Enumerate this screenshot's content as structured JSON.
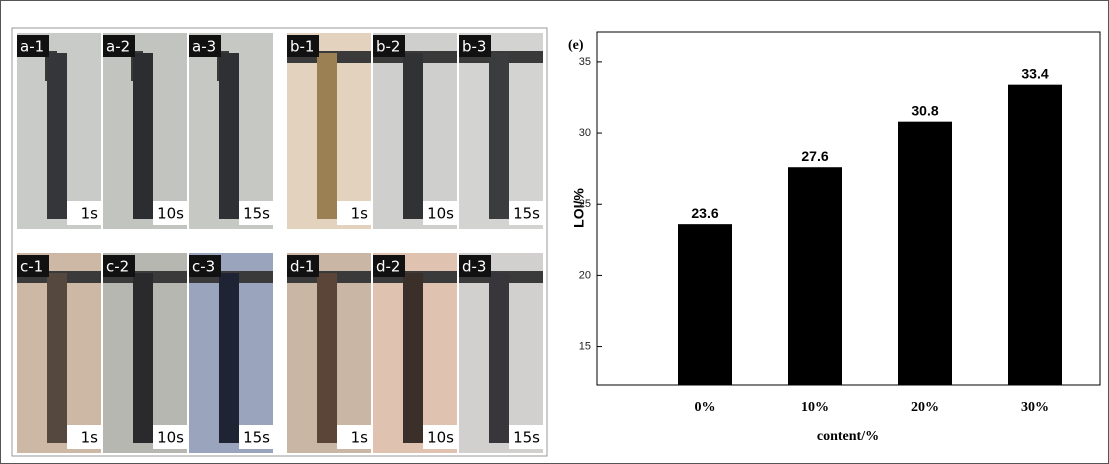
{
  "photos": {
    "groups": [
      {
        "panels": [
          {
            "label": "a-1",
            "time": "1s"
          },
          {
            "label": "a-2",
            "time": "10s"
          },
          {
            "label": "a-3",
            "time": "15s"
          }
        ]
      },
      {
        "panels": [
          {
            "label": "b-1",
            "time": "1s"
          },
          {
            "label": "b-2",
            "time": "10s"
          },
          {
            "label": "b-3",
            "time": "15s"
          }
        ]
      },
      {
        "panels": [
          {
            "label": "c-1",
            "time": "1s"
          },
          {
            "label": "c-2",
            "time": "10s"
          },
          {
            "label": "c-3",
            "time": "15s"
          }
        ]
      },
      {
        "panels": [
          {
            "label": "d-1",
            "time": "1s"
          },
          {
            "label": "d-2",
            "time": "10s"
          },
          {
            "label": "d-3",
            "time": "15s"
          }
        ]
      }
    ]
  },
  "chart_data": {
    "type": "bar",
    "annotation": "(e)",
    "x_label": "content/%",
    "y_label": "LOI/%",
    "categories": [
      "0%",
      "10%",
      "20%",
      "30%"
    ],
    "values": [
      23.6,
      27.6,
      30.8,
      33.4
    ],
    "color": "#000000",
    "ylim": [
      12.3,
      37.1
    ],
    "yticks": [
      15,
      20,
      25,
      30,
      35
    ]
  }
}
